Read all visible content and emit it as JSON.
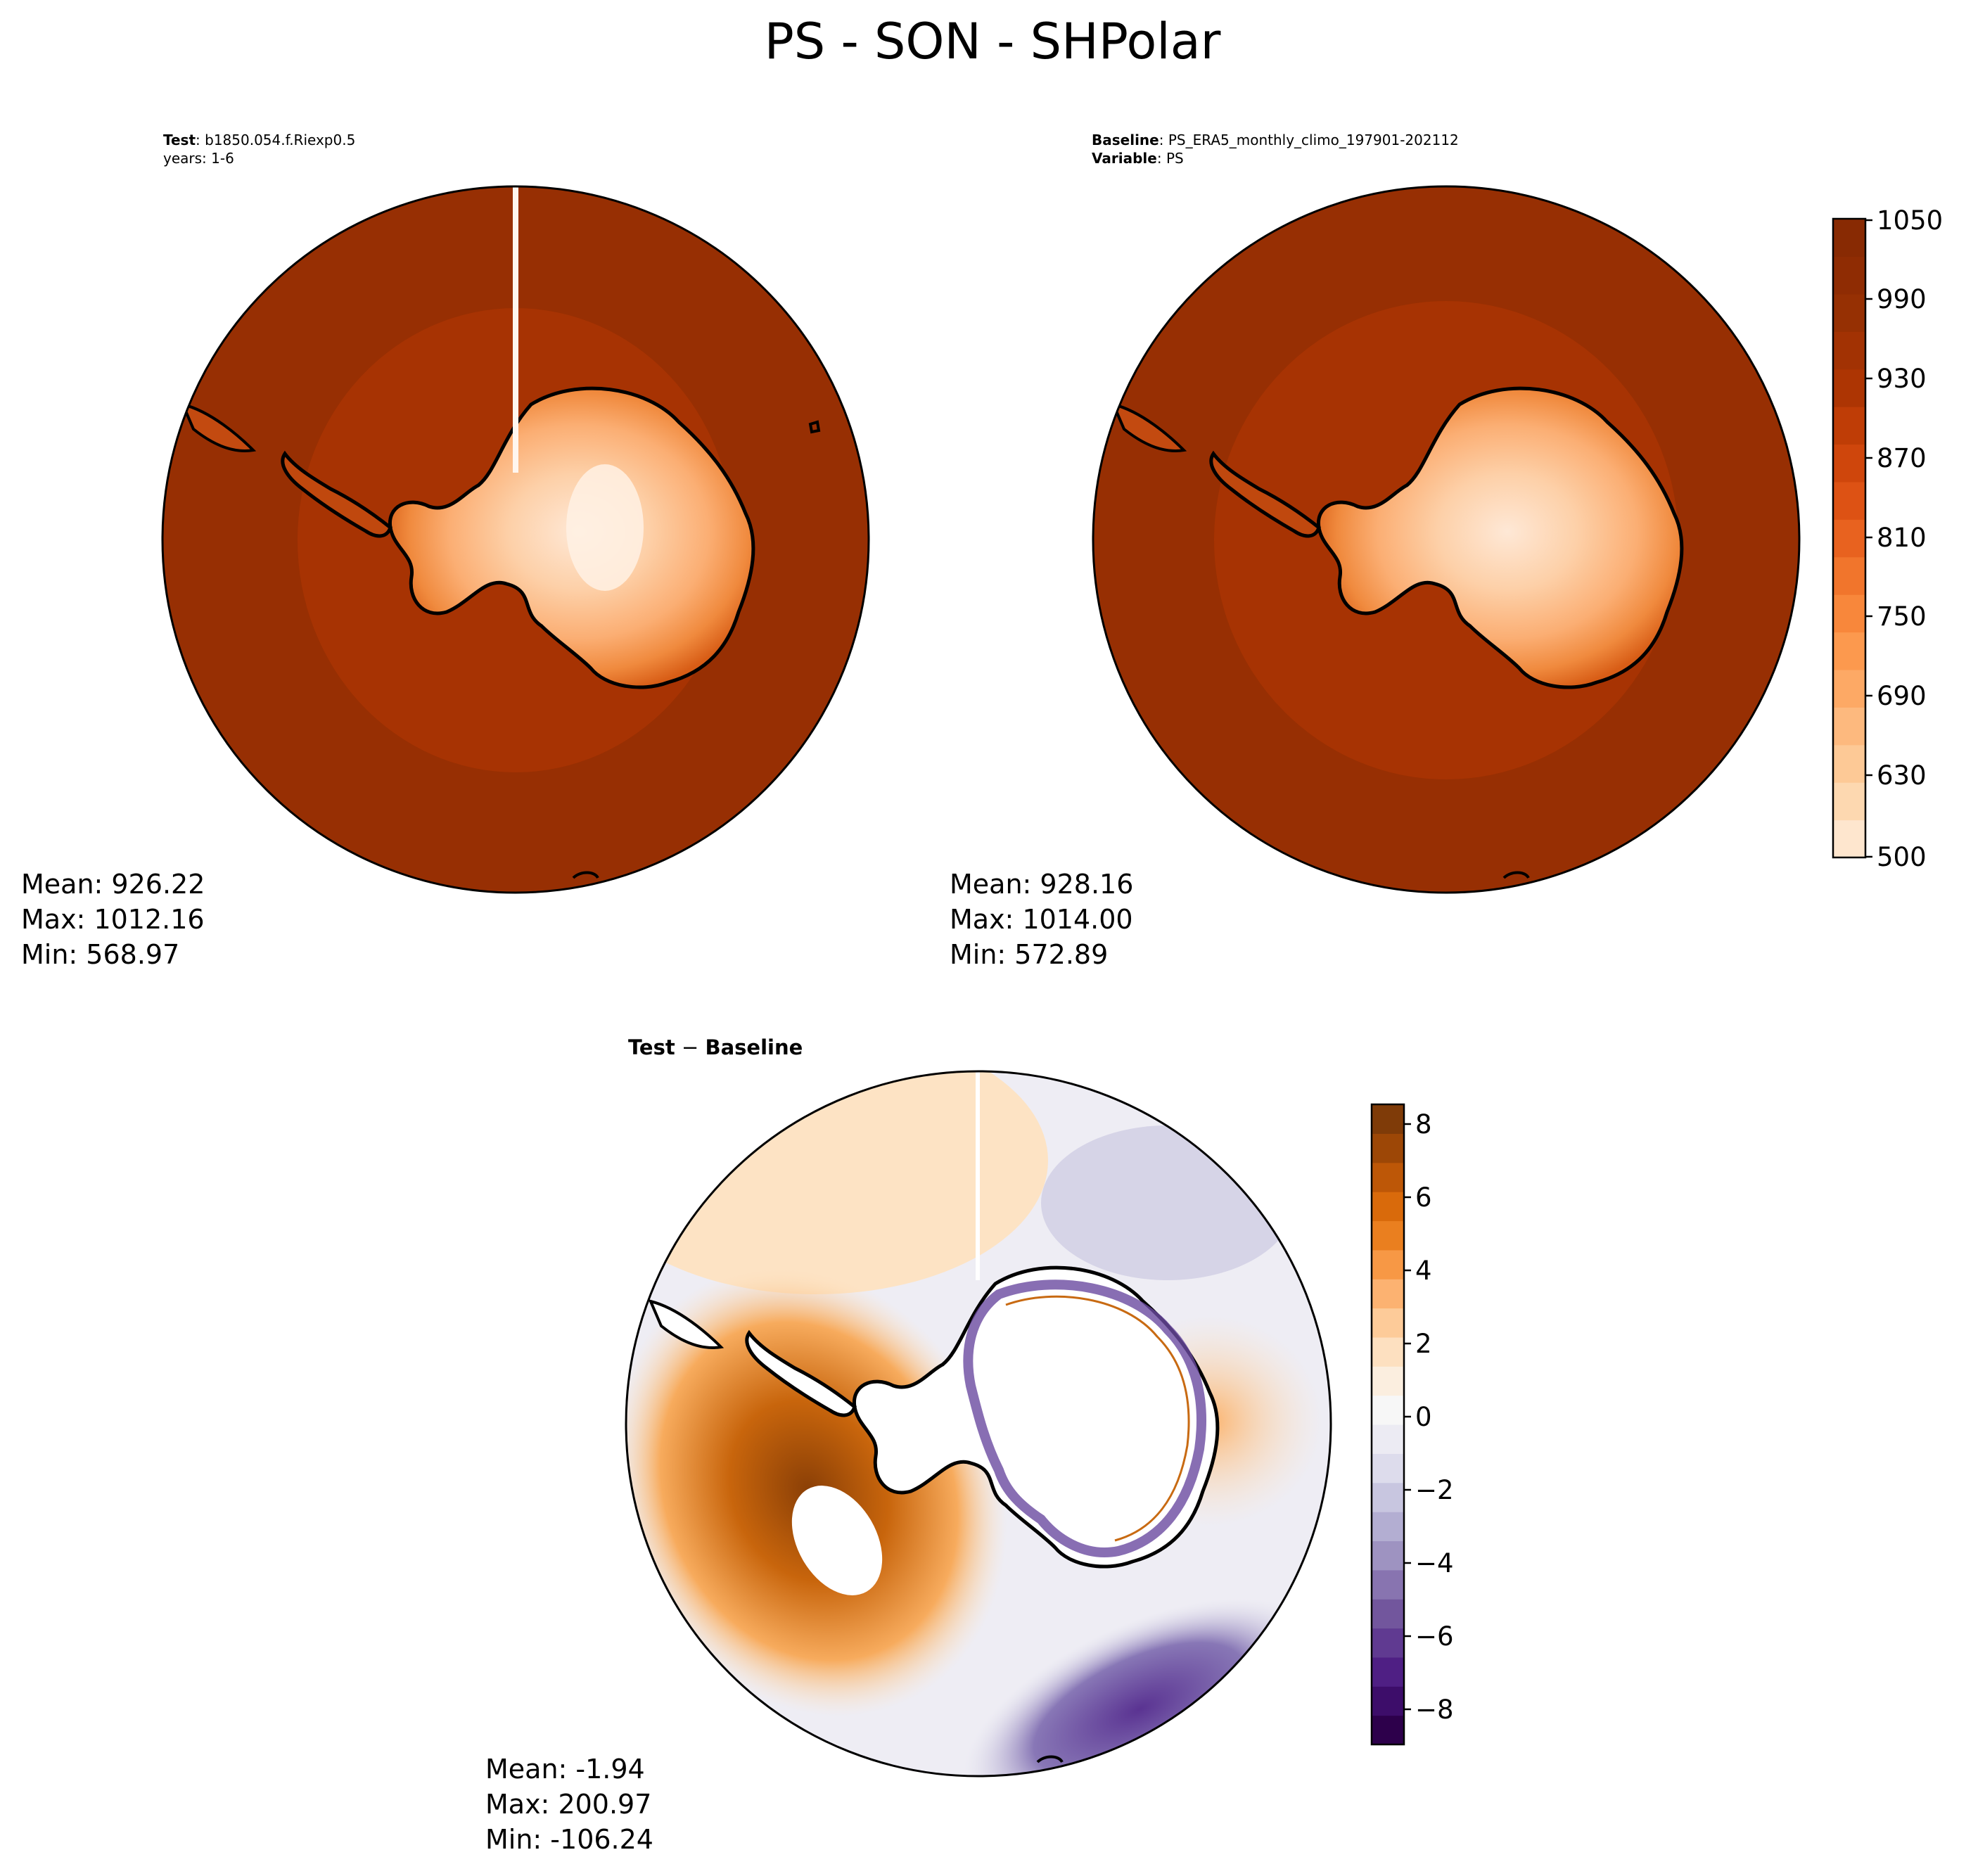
{
  "figure": {
    "title": "PS - SON - SHPolar"
  },
  "test_panel": {
    "line1_label": "Test",
    "line1_value": "b1850.054.f.Riexp0.5",
    "line2": "years: 1-6",
    "stats": {
      "mean": "Mean: 926.22",
      "max": "Max: 1012.16",
      "min": "Min: 568.97"
    }
  },
  "baseline_panel": {
    "line1_label": "Baseline",
    "line1_value": "PS_ERA5_monthly_climo_197901-202112",
    "line2_label": "Variable",
    "line2_value": "PS",
    "stats": {
      "mean": "Mean: 928.16",
      "max": "Max: 1014.00",
      "min": "Min: 572.89"
    }
  },
  "diff_panel": {
    "title_a": "Test",
    "title_op": " − ",
    "title_b": "Baseline",
    "stats": {
      "mean": "Mean: -1.94",
      "max": "Max: 200.97",
      "min": "Min: -106.24"
    }
  },
  "colorbar_main": {
    "labels": [
      "1050",
      "990",
      "930",
      "870",
      "810",
      "750",
      "690",
      "630",
      "500"
    ],
    "colors": [
      "#fee6ce",
      "#fdd8b0",
      "#fdc996",
      "#fdb97e",
      "#fda965",
      "#fc994e",
      "#f8873b",
      "#f1752c",
      "#e8621f",
      "#dd5214",
      "#cf460c",
      "#bf3d06",
      "#ad3503",
      "#a23203",
      "#963003",
      "#8f2c03",
      "#882a03"
    ]
  },
  "colorbar_diff": {
    "labels": [
      "8",
      "6",
      "4",
      "2",
      "0",
      "−2",
      "−4",
      "−6",
      "−8"
    ],
    "colors": [
      "#2d004b",
      "#3d0d6a",
      "#4f1f84",
      "#603a91",
      "#72569d",
      "#8874b0",
      "#9e93c1",
      "#b3aed2",
      "#c8c6e0",
      "#dddcec",
      "#ecebf3",
      "#f7f7f7",
      "#fbeedf",
      "#fde0c0",
      "#fdcb99",
      "#fcb271",
      "#f79845",
      "#ea7f1f",
      "#d96a0b",
      "#bd5707",
      "#9d4706",
      "#7f3b08"
    ]
  },
  "chart_data": [
    {
      "type": "heatmap",
      "title": "Test: b1850.054.f.Riexp0.5",
      "subtitle": "years: 1-6",
      "colorbar_ticks": [
        500,
        630,
        690,
        750,
        810,
        870,
        930,
        990,
        1050
      ],
      "stats": {
        "mean": 926.22,
        "max": 1012.16,
        "min": 568.97
      }
    },
    {
      "type": "heatmap",
      "title": "Baseline: PS_ERA5_monthly_climo_197901-202112",
      "subtitle": "Variable: PS",
      "colorbar_ticks": [
        500,
        630,
        690,
        750,
        810,
        870,
        930,
        990,
        1050
      ],
      "stats": {
        "mean": 928.16,
        "max": 1014.0,
        "min": 572.89
      }
    },
    {
      "type": "heatmap",
      "title": "Test − Baseline",
      "colorbar_ticks": [
        -8,
        -6,
        -4,
        -2,
        0,
        2,
        4,
        6,
        8
      ],
      "stats": {
        "mean": -1.94,
        "max": 200.97,
        "min": -106.24
      }
    }
  ]
}
